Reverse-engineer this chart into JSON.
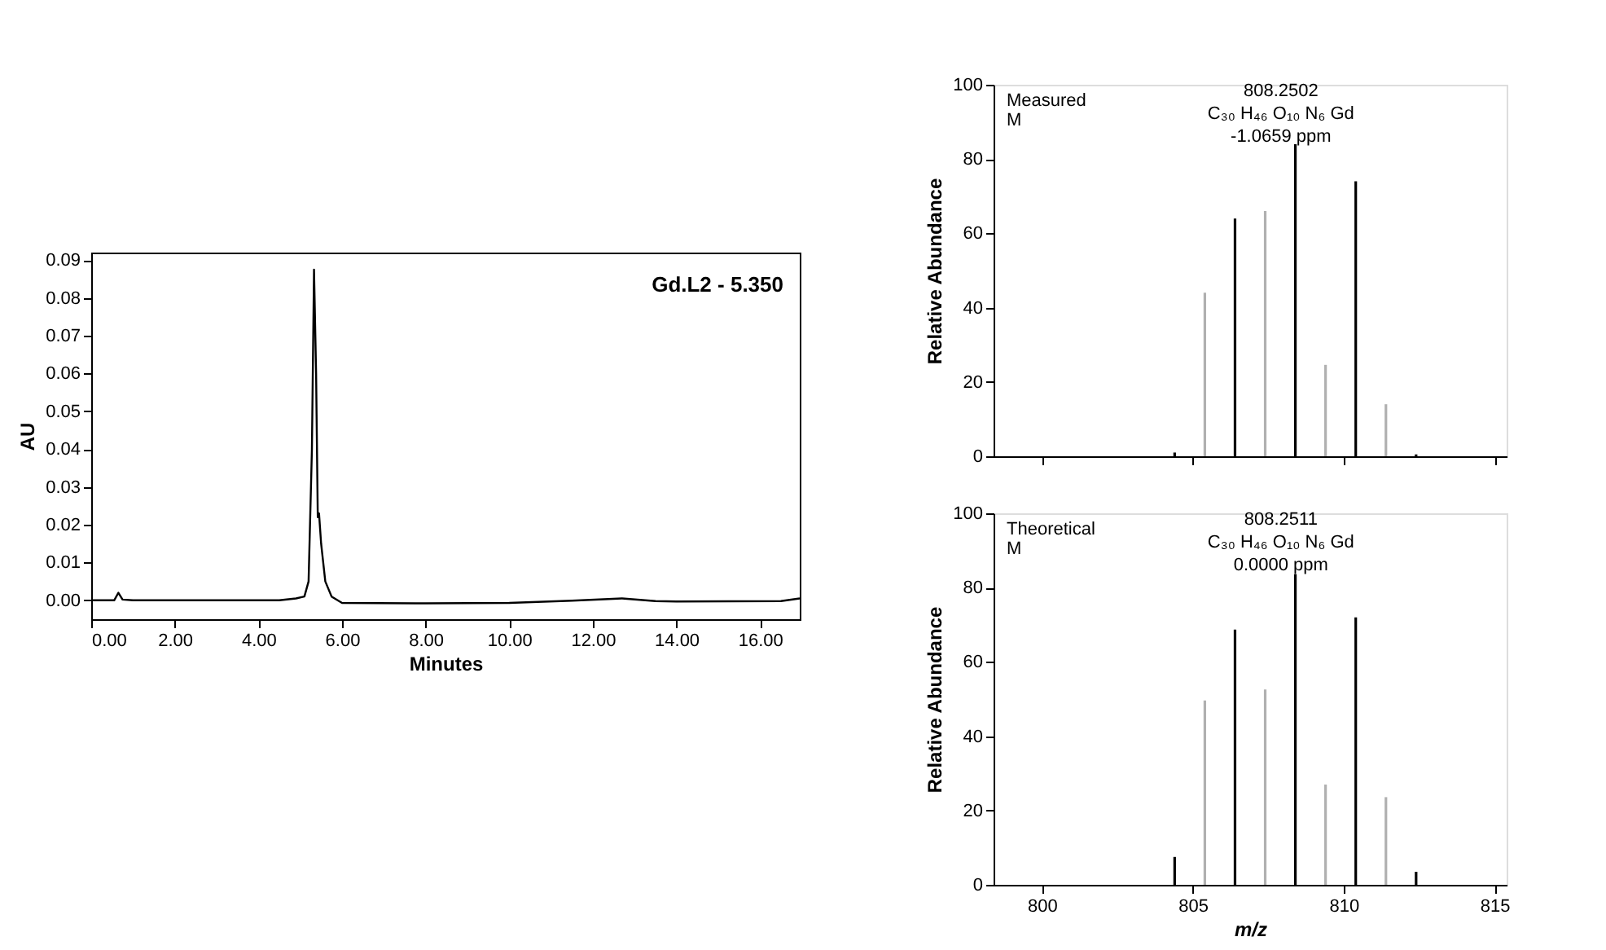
{
  "chart_data": [
    {
      "type": "line",
      "xlabel": "Minutes",
      "ylabel": "AU",
      "annotations": [
        "Gd.L2 - 5.350"
      ],
      "grid": false,
      "series": [
        {
          "color": "#000000",
          "line_style": "solid",
          "x": [
            0,
            0.55,
            0.65,
            0.75,
            1.0,
            4.5,
            4.9,
            5.1,
            5.2,
            5.28,
            5.33,
            5.38,
            5.42,
            5.45,
            5.5,
            5.6,
            5.75,
            6.0,
            8.0,
            10.0,
            11.5,
            12.7,
            13.5,
            14.0,
            16.5,
            16.95
          ],
          "values": [
            0,
            0,
            0.002,
            0.0002,
            0,
            0,
            0.0005,
            0.001,
            0.005,
            0.04,
            0.0875,
            0.06,
            0.022,
            0.023,
            0.015,
            0.005,
            0.001,
            -0.0007,
            -0.0008,
            -0.0007,
            -0.0001,
            0.0005,
            -0.0002,
            -0.0003,
            -0.0002,
            0.0005
          ]
        }
      ],
      "xlim": [
        0,
        16.95
      ],
      "ylim": [
        -0.005,
        0.092
      ],
      "xticks": [
        {
          "value": 0,
          "label": "0.00"
        },
        {
          "value": 2,
          "label": "2.00"
        },
        {
          "value": 4,
          "label": "4.00"
        },
        {
          "value": 6,
          "label": "6.00"
        },
        {
          "value": 8,
          "label": "8.00"
        },
        {
          "value": 10,
          "label": "10.00"
        },
        {
          "value": 12,
          "label": "12.00"
        },
        {
          "value": 14,
          "label": "14.00"
        },
        {
          "value": 16,
          "label": "16.00"
        }
      ],
      "yticks": [
        {
          "value": 0,
          "label": "0.00"
        },
        {
          "value": 0.01,
          "label": "0.01"
        },
        {
          "value": 0.02,
          "label": "0.02"
        },
        {
          "value": 0.03,
          "label": "0.03"
        },
        {
          "value": 0.04,
          "label": "0.04"
        },
        {
          "value": 0.05,
          "label": "0.05"
        },
        {
          "value": 0.06,
          "label": "0.06"
        },
        {
          "value": 0.07,
          "label": "0.07"
        },
        {
          "value": 0.08,
          "label": "0.08"
        },
        {
          "value": 0.09,
          "label": "0.09"
        }
      ]
    },
    {
      "type": "bar",
      "ylabel": "Relative Abundance",
      "annotations": [
        "Measured",
        "M",
        "808.2502",
        "C₃₀ H₄₆ O₁₀ N₆ Gd",
        "-1.0659 ppm"
      ],
      "grid": false,
      "tick_labels": "y",
      "x": [
        804.4,
        805.4,
        806.4,
        807.4,
        808.4,
        809.4,
        810.4,
        811.4,
        812.4
      ],
      "values": [
        1,
        44,
        64,
        66,
        84,
        24.6,
        74,
        14,
        0.5
      ],
      "colors": [
        "#000000",
        "#b0b0b0",
        "#000000",
        "#b0b0b0",
        "#000000",
        "#b0b0b0",
        "#000000",
        "#b0b0b0",
        "#000000"
      ],
      "xlim": [
        798.4,
        815.4
      ],
      "xticks": [
        800,
        805,
        810,
        815
      ],
      "ylim": [
        0,
        100
      ],
      "yticks": [
        0,
        20,
        40,
        60,
        80,
        100
      ]
    },
    {
      "type": "bar",
      "xlabel": "m/z",
      "ylabel": "Relative Abundance",
      "annotations": [
        "Theoretical",
        "M",
        "808.2511",
        "C₃₀ H₄₆ O₁₀ N₆ Gd",
        "0.0000 ppm"
      ],
      "grid": false,
      "x": [
        804.4,
        805.4,
        806.4,
        807.4,
        808.4,
        809.4,
        810.4,
        811.4,
        812.4
      ],
      "values": [
        7.5,
        49.6,
        68.7,
        52.6,
        83.6,
        27,
        72,
        23.6,
        3.5
      ],
      "colors": [
        "#000000",
        "#b0b0b0",
        "#000000",
        "#b0b0b0",
        "#000000",
        "#b0b0b0",
        "#000000",
        "#b0b0b0",
        "#000000"
      ],
      "xlim": [
        798.4,
        815.4
      ],
      "xticks": [
        800,
        805,
        810,
        815
      ],
      "ylim": [
        0,
        100
      ],
      "yticks": [
        0,
        20,
        40,
        60,
        80,
        100
      ]
    }
  ]
}
